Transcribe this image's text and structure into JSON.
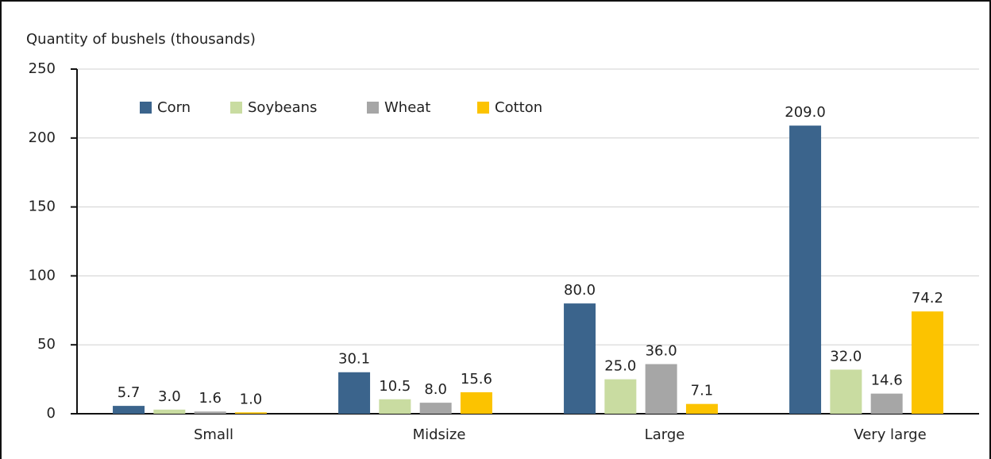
{
  "chart_data": {
    "type": "bar",
    "y_label": "Quantity of bushels (thousands)",
    "categories": [
      "Small",
      "Midsize",
      "Large",
      "Very large"
    ],
    "series": [
      {
        "name": "Corn",
        "color": "#3b648c",
        "values": [
          5.7,
          30.1,
          80,
          209
        ],
        "value_labels": [
          "5.7",
          "30.1",
          "80.0",
          "209.0"
        ]
      },
      {
        "name": "Soybeans",
        "color": "#c9dca1",
        "values": [
          3,
          10.5,
          25,
          32
        ],
        "value_labels": [
          "3.0",
          "10.5",
          "25.0",
          "32.0"
        ]
      },
      {
        "name": "Wheat",
        "color": "#a6a6a6",
        "values": [
          1.6,
          8,
          36,
          14.6
        ],
        "value_labels": [
          "1.6",
          "8.0",
          "36.0",
          "14.6"
        ]
      },
      {
        "name": "Cotton",
        "color": "#fcc300",
        "values": [
          1,
          15.6,
          7.1,
          74.2
        ],
        "value_labels": [
          "1.0",
          "15.6",
          "7.1",
          "74.2"
        ]
      }
    ],
    "ylim": [
      0,
      250
    ],
    "yticks": [
      0,
      50,
      100,
      150,
      200,
      250
    ],
    "grid": true,
    "legend": "top-left"
  }
}
